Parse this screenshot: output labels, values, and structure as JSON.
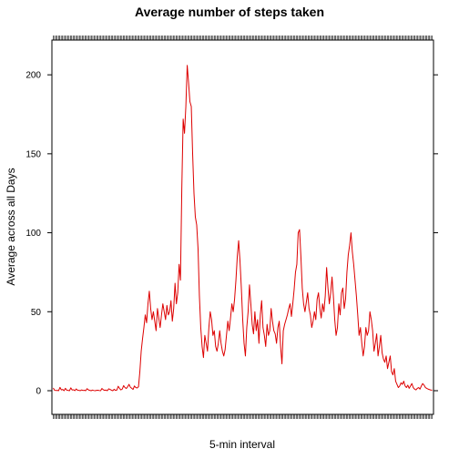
{
  "chart_data": {
    "type": "line",
    "title": "Average number of steps taken",
    "xlabel": "5-min interval",
    "ylabel": "Average across all Days",
    "x_count": 288,
    "xlim": [
      0,
      289
    ],
    "ylim": [
      -15,
      222
    ],
    "y_ticks": [
      0,
      50,
      100,
      150,
      200
    ],
    "grid": false,
    "legend": "none",
    "colors": {
      "line": "#dd0000",
      "frame": "#000000"
    },
    "series": [
      {
        "values": [
          1.7,
          0.3,
          0.1,
          0.2,
          0.0,
          2.1,
          0.5,
          0.8,
          0.0,
          1.5,
          0.3,
          0.2,
          0.0,
          1.8,
          0.4,
          0.6,
          0.0,
          1.1,
          0.3,
          0.2,
          0.0,
          0.5,
          0.1,
          0.3,
          0.0,
          1.3,
          0.5,
          0.2,
          0.0,
          0.4,
          0.1,
          0.0,
          0.2,
          0.3,
          0.1,
          0.0,
          1.4,
          0.6,
          0.2,
          0.4,
          0.0,
          1.2,
          0.8,
          0.3,
          0.0,
          0.9,
          0.2,
          0.4,
          2.8,
          1.5,
          0.5,
          1.0,
          3.2,
          2.0,
          1.4,
          2.5,
          4.0,
          2.2,
          1.5,
          0.8,
          3.0,
          2.0,
          1.7,
          2.5,
          12.0,
          25.0,
          33.0,
          40.0,
          48.0,
          43.0,
          55.0,
          63.0,
          52.0,
          45.0,
          50.0,
          44.0,
          38.0,
          52.0,
          46.0,
          40.0,
          48.0,
          55.0,
          50.0,
          45.0,
          54.0,
          48.0,
          50.0,
          57.0,
          44.0,
          52.0,
          68.0,
          55.0,
          62.0,
          80.0,
          70.0,
          128.0,
          172.0,
          163.0,
          180.0,
          206.0,
          195.0,
          183.0,
          180.0,
          150.0,
          125.0,
          110.0,
          105.0,
          90.0,
          60.0,
          40.0,
          28.0,
          21.0,
          35.0,
          30.0,
          25.0,
          40.0,
          50.0,
          45.0,
          35.0,
          38.0,
          28.0,
          25.0,
          30.0,
          38.0,
          30.0,
          25.0,
          22.0,
          26.0,
          35.0,
          44.0,
          38.0,
          46.0,
          55.0,
          50.0,
          58.0,
          70.0,
          85.0,
          95.0,
          82.0,
          65.0,
          45.0,
          30.0,
          22.0,
          40.0,
          50.0,
          67.0,
          55.0,
          42.0,
          36.0,
          50.0,
          38.0,
          45.0,
          30.0,
          48.0,
          57.0,
          40.0,
          35.0,
          28.0,
          42.0,
          35.0,
          38.0,
          52.0,
          44.0,
          38.0,
          36.0,
          30.0,
          40.0,
          44.0,
          28.0,
          17.0,
          38.0,
          42.0,
          45.0,
          48.0,
          52.0,
          55.0,
          47.0,
          55.0,
          64.0,
          75.0,
          80.0,
          100.0,
          102.0,
          85.0,
          65.0,
          55.0,
          50.0,
          56.0,
          62.0,
          52.0,
          48.0,
          40.0,
          44.0,
          50.0,
          45.0,
          58.0,
          62.0,
          52.0,
          46.0,
          55.0,
          50.0,
          60.0,
          78.0,
          65.0,
          55.0,
          62.0,
          72.0,
          60.0,
          45.0,
          35.0,
          40.0,
          55.0,
          48.0,
          62.0,
          65.0,
          52.0,
          58.0,
          75.0,
          86.0,
          92.0,
          100.0,
          88.0,
          80.0,
          70.0,
          60.0,
          48.0,
          35.0,
          40.0,
          30.0,
          22.0,
          28.0,
          40.0,
          35.0,
          38.0,
          50.0,
          45.0,
          38.0,
          25.0,
          30.0,
          36.0,
          22.0,
          28.0,
          35.0,
          24.0,
          20.0,
          18.0,
          22.0,
          14.0,
          18.0,
          22.0,
          12.0,
          10.0,
          14.0,
          6.0,
          4.0,
          2.0,
          3.0,
          5.0,
          4.0,
          6.0,
          3.0,
          2.0,
          3.5,
          1.5,
          3.0,
          4.5,
          2.0,
          1.0,
          0.5,
          1.5,
          2.0,
          1.0,
          3.0,
          4.5,
          3.5,
          2.0,
          1.5,
          1.0,
          0.7,
          0.4,
          0.3
        ]
      }
    ]
  }
}
